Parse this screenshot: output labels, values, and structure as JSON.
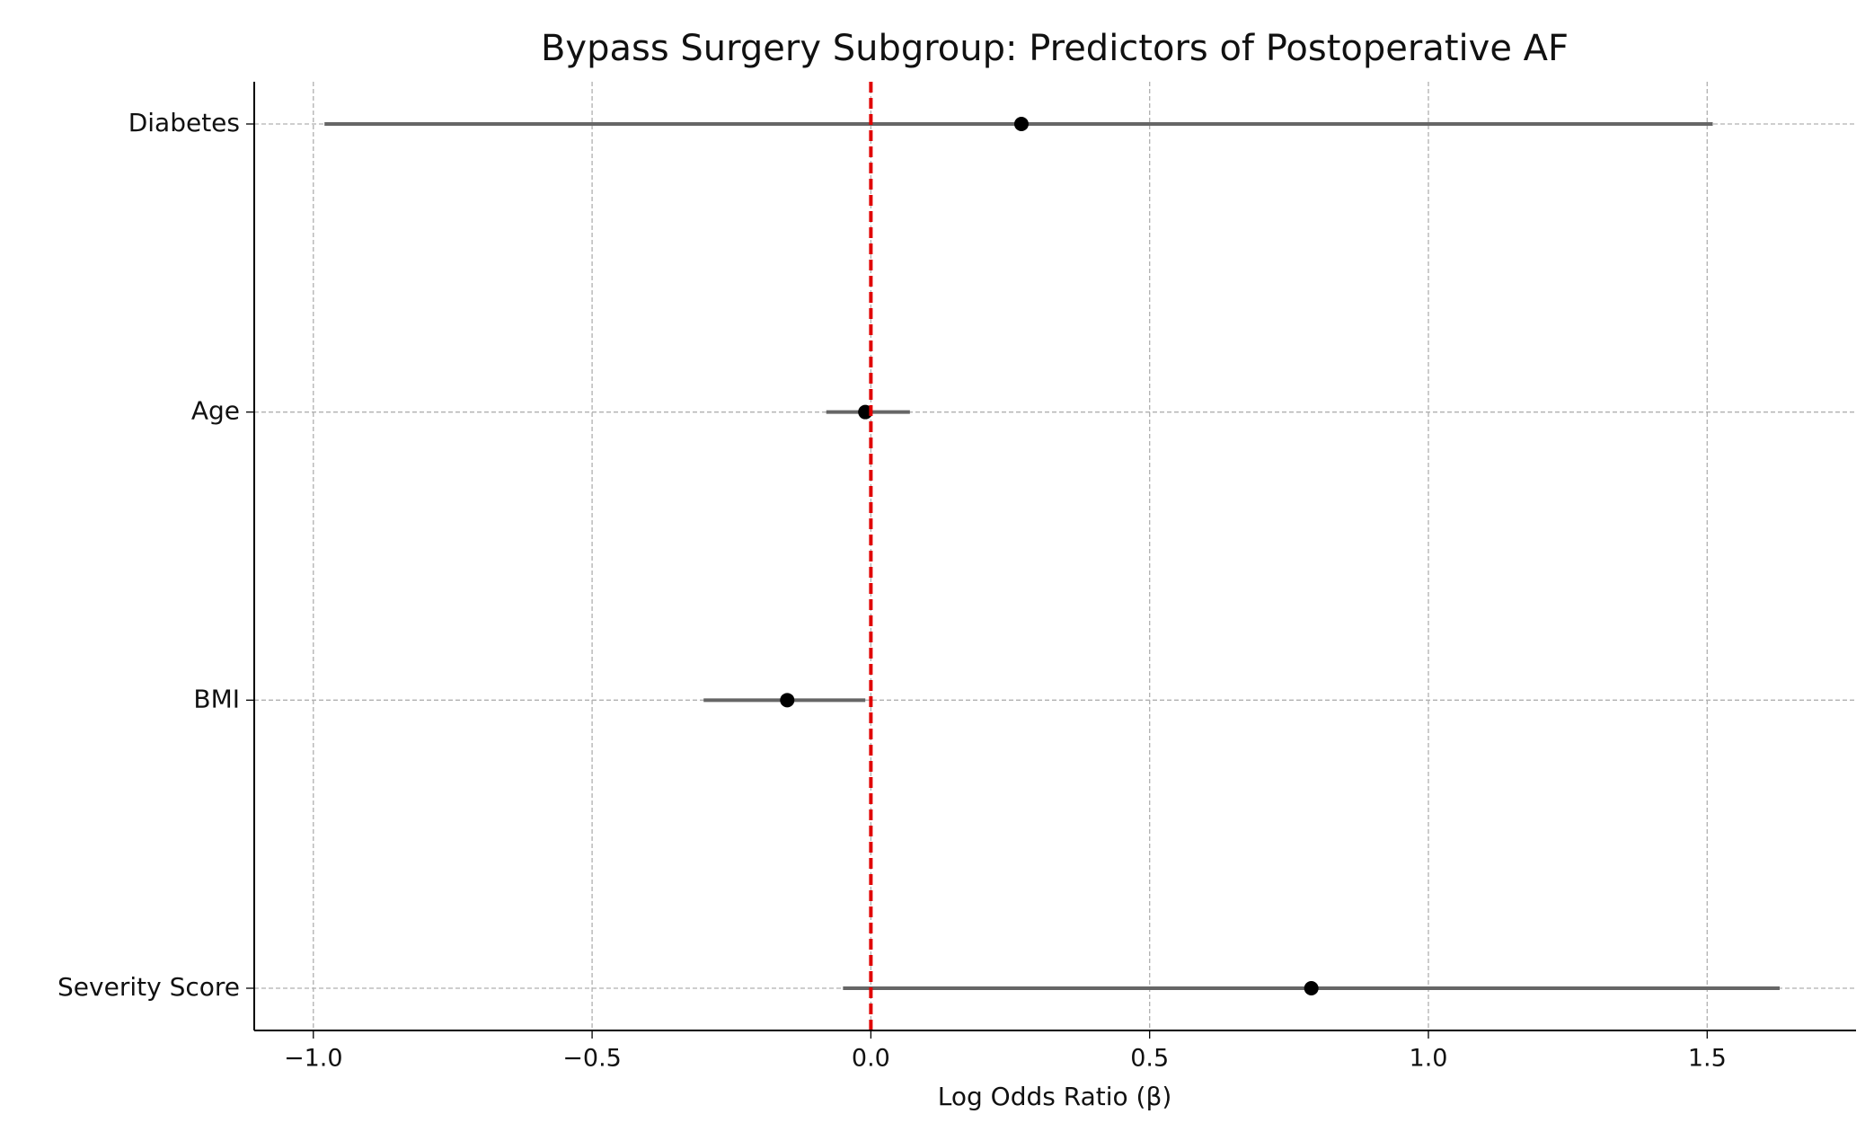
{
  "chart_data": {
    "type": "forest",
    "title": "Bypass Surgery Subgroup: Predictors of Postoperative AF",
    "x_label": "Log Odds Ratio (β)",
    "categories": [
      "Diabetes",
      "Age",
      "BMI",
      "Severity Score"
    ],
    "values": [
      0.27,
      -0.01,
      -0.15,
      0.79
    ],
    "ci_low": [
      -0.98,
      -0.08,
      -0.3,
      -0.05
    ],
    "ci_high": [
      1.51,
      0.07,
      -0.01,
      1.63
    ],
    "point_color": "#000000",
    "ci_color": "#666666",
    "reference_line": {
      "value": 0,
      "color": "#e00000"
    },
    "xlim": [
      -1.106,
      1.767
    ],
    "xticks": [
      {
        "value": -1.0,
        "label": "−1.0"
      },
      {
        "value": -0.5,
        "label": "−0.5"
      },
      {
        "value": 0,
        "label": "0.0"
      },
      0.5,
      {
        "value": 1.0,
        "label": "1.0"
      },
      1.5
    ],
    "grid": true
  }
}
